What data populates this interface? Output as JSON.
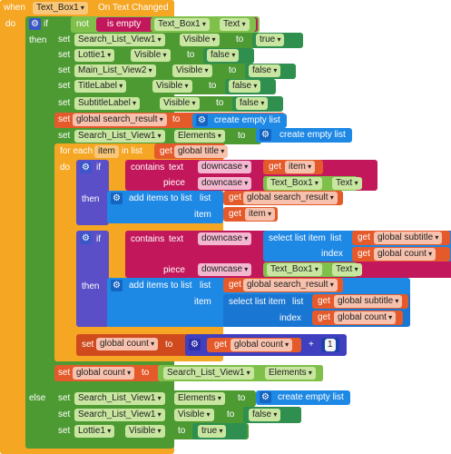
{
  "event": {
    "when": "when",
    "component": "Text_Box1",
    "event": "On Text Changed",
    "do": "do"
  },
  "if_main": {
    "if": "if",
    "then": "then",
    "else": "else",
    "not": "not",
    "is_empty": "is empty",
    "component": "Text_Box1",
    "prop": "Text"
  },
  "then_sets": [
    {
      "set": "set",
      "comp": "Search_List_View1",
      "prop": "Visible",
      "to": "to",
      "val": "true"
    },
    {
      "set": "set",
      "comp": "Lottie1",
      "prop": "Visible",
      "to": "to",
      "val": "false"
    },
    {
      "set": "set",
      "comp": "Main_List_View2",
      "prop": "Visible",
      "to": "to",
      "val": "false"
    },
    {
      "set": "set",
      "comp": "TitleLabel",
      "prop": "Visible",
      "to": "to",
      "val": "false"
    },
    {
      "set": "set",
      "comp": "SubtitleLabel",
      "prop": "Visible",
      "to": "to",
      "val": "false"
    }
  ],
  "global_set": {
    "set": "set",
    "var": "global search_result",
    "to": "to",
    "create": "create empty list"
  },
  "elements_set": {
    "set": "set",
    "comp": "Search_List_View1",
    "prop": "Elements",
    "to": "to",
    "create": "create empty list"
  },
  "foreach": {
    "for_each": "for each",
    "item": "item",
    "in_list": "in list",
    "get": "get",
    "list": "global title",
    "do": "do"
  },
  "inner_if1": {
    "if": "if",
    "contains": "contains",
    "text": "text",
    "downcase": "downcase",
    "get": "get",
    "item": "item",
    "piece": "piece",
    "comp": "Text_Box1",
    "prop": "Text",
    "then": "then",
    "add": "add items to list",
    "list_lbl": "list",
    "list": "global search_result",
    "item_lbl": "item"
  },
  "inner_if2": {
    "if": "if",
    "contains": "contains",
    "text": "text",
    "downcase": "downcase",
    "select": "select list item",
    "list_lbl": "list",
    "get": "get",
    "subtitle": "global subtitle",
    "index_lbl": "index",
    "count": "global count",
    "piece": "piece",
    "comp": "Text_Box1",
    "prop": "Text",
    "then": "then",
    "add": "add items to list",
    "list": "global search_result",
    "item_lbl": "item"
  },
  "count_set": {
    "set": "set",
    "var": "global count",
    "to": "to",
    "get": "get",
    "plus": "+",
    "one": "1"
  },
  "final_set": {
    "set": "set",
    "var": "global count",
    "to": "to",
    "comp": "Search_List_View1",
    "prop": "Elements"
  },
  "else_sets": {
    "a": {
      "set": "set",
      "comp": "Search_List_View1",
      "prop": "Elements",
      "to": "to",
      "create": "create empty list"
    },
    "b": {
      "set": "set",
      "comp": "Search_List_View1",
      "prop": "Visible",
      "to": "to",
      "val": "false"
    },
    "c": {
      "set": "set",
      "comp": "Lottie1",
      "prop": "Visible",
      "to": "to",
      "val": "true"
    }
  }
}
